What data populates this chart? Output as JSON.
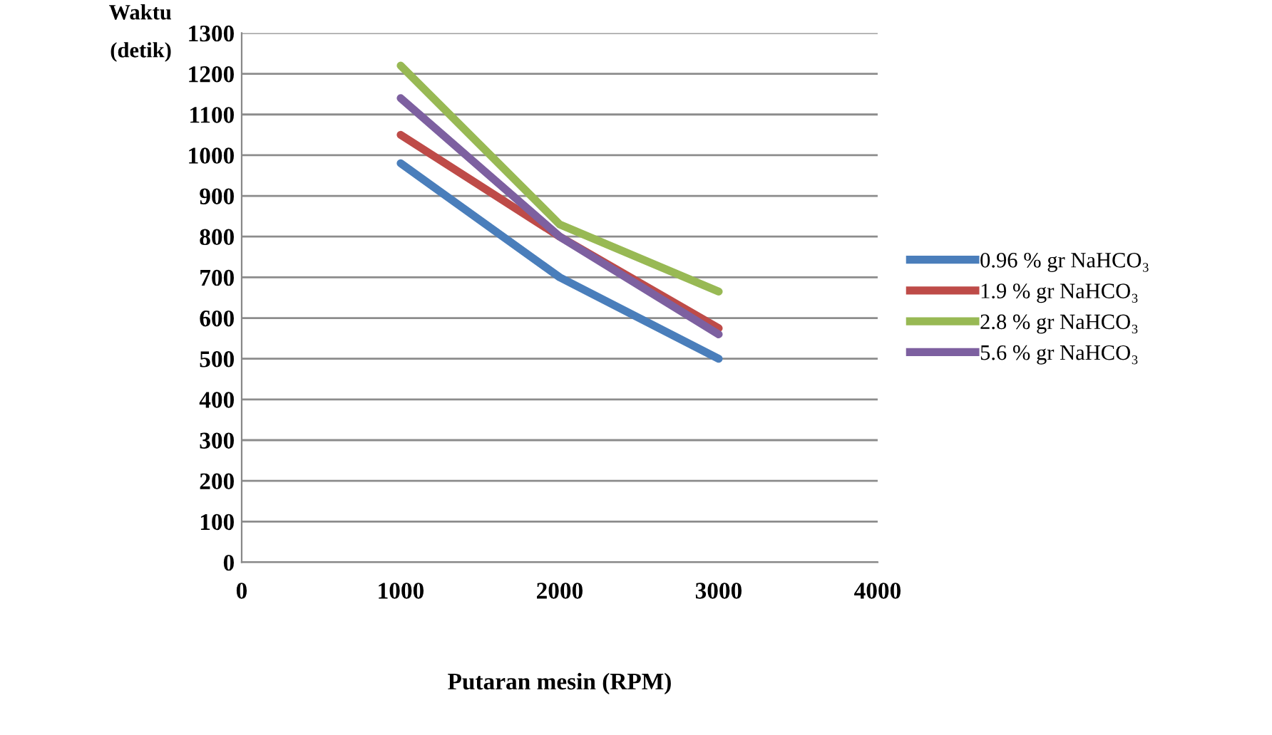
{
  "chart_data": {
    "type": "line",
    "ylabel": "Waktu\n(detik)",
    "xlabel": "Putaran mesin (RPM)",
    "x": [
      1000,
      2000,
      3000
    ],
    "series": [
      {
        "name": "0.96 % gr NaHCO₃",
        "color": "#4a7ebb",
        "values": [
          980,
          700,
          500
        ]
      },
      {
        "name": "1.9 % gr NaHCO₃",
        "color": "#be4b48",
        "values": [
          1050,
          800,
          575
        ]
      },
      {
        "name": "2.8 % gr NaHCO₃",
        "color": "#98b954",
        "values": [
          1220,
          830,
          665
        ]
      },
      {
        "name": "5.6 % gr NaHCO₃",
        "color": "#7d60a0",
        "values": [
          1140,
          800,
          560
        ]
      }
    ],
    "xlim": [
      0,
      4000
    ],
    "xticks": [
      0,
      1000,
      2000,
      3000,
      4000
    ],
    "ylim": [
      0,
      1300
    ],
    "yticks": [
      0,
      100,
      200,
      300,
      400,
      500,
      600,
      700,
      800,
      900,
      1000,
      1100,
      1200,
      1300
    ],
    "grid": "y",
    "legend": "right"
  }
}
